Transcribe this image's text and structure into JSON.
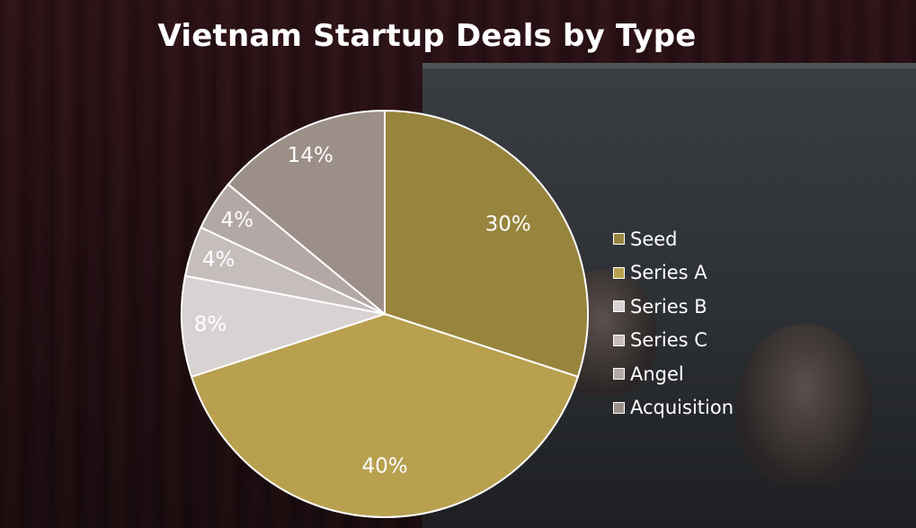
{
  "chart_data": {
    "type": "pie",
    "title": "Vietnam Startup Deals by Type",
    "slices": [
      {
        "label": "Seed",
        "value": 30,
        "display": "30%",
        "color": "#97843d"
      },
      {
        "label": "Series A",
        "value": 40,
        "display": "40%",
        "color": "#b8a04f"
      },
      {
        "label": "Series B",
        "value": 8,
        "display": "8%",
        "color": "#d8d2d2"
      },
      {
        "label": "Series C",
        "value": 4,
        "display": "4%",
        "color": "#c6bdbd"
      },
      {
        "label": "Angel",
        "value": 4,
        "display": "4%",
        "color": "#b3a8a6"
      },
      {
        "label": "Acquisition",
        "value": 14,
        "display": "14%",
        "color": "#9c8f88"
      }
    ],
    "legend_position": "right"
  }
}
